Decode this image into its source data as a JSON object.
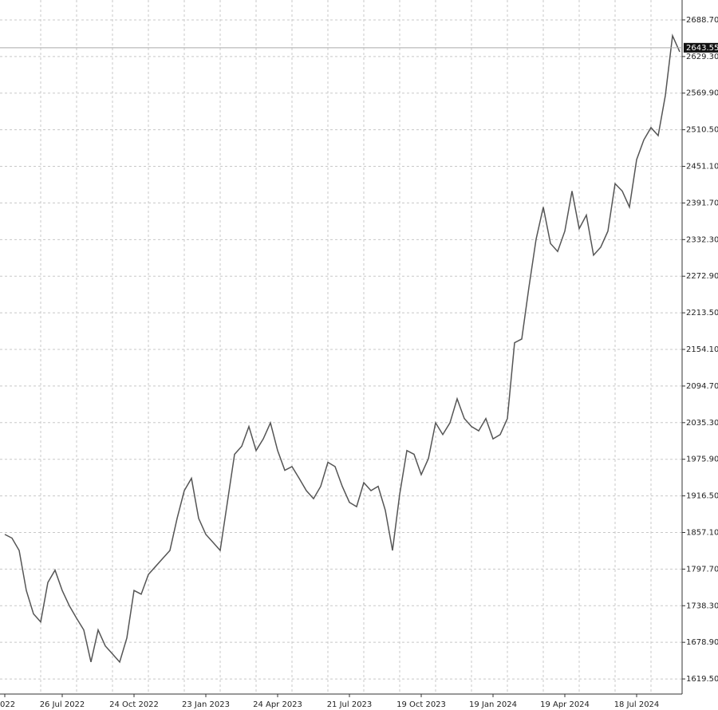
{
  "chart_data": {
    "type": "line",
    "categories": [
      "022",
      null,
      null,
      null,
      null,
      null,
      null,
      null,
      "26 Jul 2022",
      null,
      null,
      null,
      null,
      null,
      null,
      null,
      null,
      null,
      "24 Oct 2022",
      null,
      null,
      null,
      null,
      null,
      null,
      null,
      null,
      null,
      "23 Jan 2023",
      null,
      null,
      null,
      null,
      null,
      null,
      null,
      null,
      null,
      "24 Apr 2023",
      null,
      null,
      null,
      null,
      null,
      null,
      null,
      null,
      null,
      "21 Jul 2023",
      null,
      null,
      null,
      null,
      null,
      null,
      null,
      null,
      null,
      "19 Oct 2023",
      null,
      null,
      null,
      null,
      null,
      null,
      null,
      null,
      null,
      "19 Jan 2024",
      null,
      null,
      null,
      null,
      null,
      null,
      null,
      null,
      null,
      "19 Apr 2024",
      null,
      null,
      null,
      null,
      null,
      null,
      null,
      null,
      null,
      "18 Jul 2024",
      null,
      null,
      null,
      null,
      null,
      null
    ],
    "values": [
      1854,
      1848,
      1828,
      1763,
      1725,
      1712,
      1776,
      1796,
      1763,
      1738,
      1718,
      1699,
      1647,
      1699,
      1673,
      1660,
      1647,
      1686,
      1763,
      1757,
      1789,
      1802,
      1815,
      1828,
      1880,
      1925,
      1945,
      1880,
      1854,
      1841,
      1828,
      1906,
      1984,
      1997,
      2029,
      1990,
      2009,
      2035,
      1990,
      1958,
      1964,
      1945,
      1925,
      1912,
      1932,
      1971,
      1964,
      1932,
      1906,
      1899,
      1938,
      1925,
      1932,
      1893,
      1828,
      1919,
      1990,
      1984,
      1951,
      1977,
      2035,
      2016,
      2035,
      2074,
      2042,
      2029,
      2022,
      2042,
      2009,
      2016,
      2042,
      2165,
      2171,
      2255,
      2333,
      2385,
      2326,
      2313,
      2346,
      2411,
      2350,
      2372,
      2307,
      2320,
      2346,
      2423,
      2411,
      2385,
      2462,
      2494,
      2514,
      2501,
      2566,
      2663,
      2637
    ],
    "color": "#555555",
    "current_value": 2643.55,
    "ylim": [
      1595,
      2721
    ],
    "yticks": [
      {
        "value": 1619.5,
        "label": "1619.50"
      },
      {
        "value": 1678.9,
        "label": "1678.90"
      },
      {
        "value": 1738.3,
        "label": "1738.30"
      },
      {
        "value": 1797.7,
        "label": "1797.70"
      },
      {
        "value": 1857.1,
        "label": "1857.10"
      },
      {
        "value": 1916.5,
        "label": "1916.50"
      },
      {
        "value": 1975.9,
        "label": "1975.90"
      },
      {
        "value": 2035.3,
        "label": "2035.30"
      },
      {
        "value": 2094.7,
        "label": "2094.70"
      },
      {
        "value": 2154.1,
        "label": "2154.10"
      },
      {
        "value": 2213.5,
        "label": "2213.50"
      },
      {
        "value": 2272.9,
        "label": "2272.90"
      },
      {
        "value": 2332.3,
        "label": "2332.30"
      },
      {
        "value": 2391.7,
        "label": "2391.70"
      },
      {
        "value": 2451.1,
        "label": "2451.10"
      },
      {
        "value": 2510.5,
        "label": "2510.50"
      },
      {
        "value": 2569.9,
        "label": "2569.90"
      },
      {
        "value": 2629.3,
        "label": "2629.30"
      },
      {
        "value": 2688.7,
        "label": "2688.70"
      }
    ],
    "grid": true
  }
}
